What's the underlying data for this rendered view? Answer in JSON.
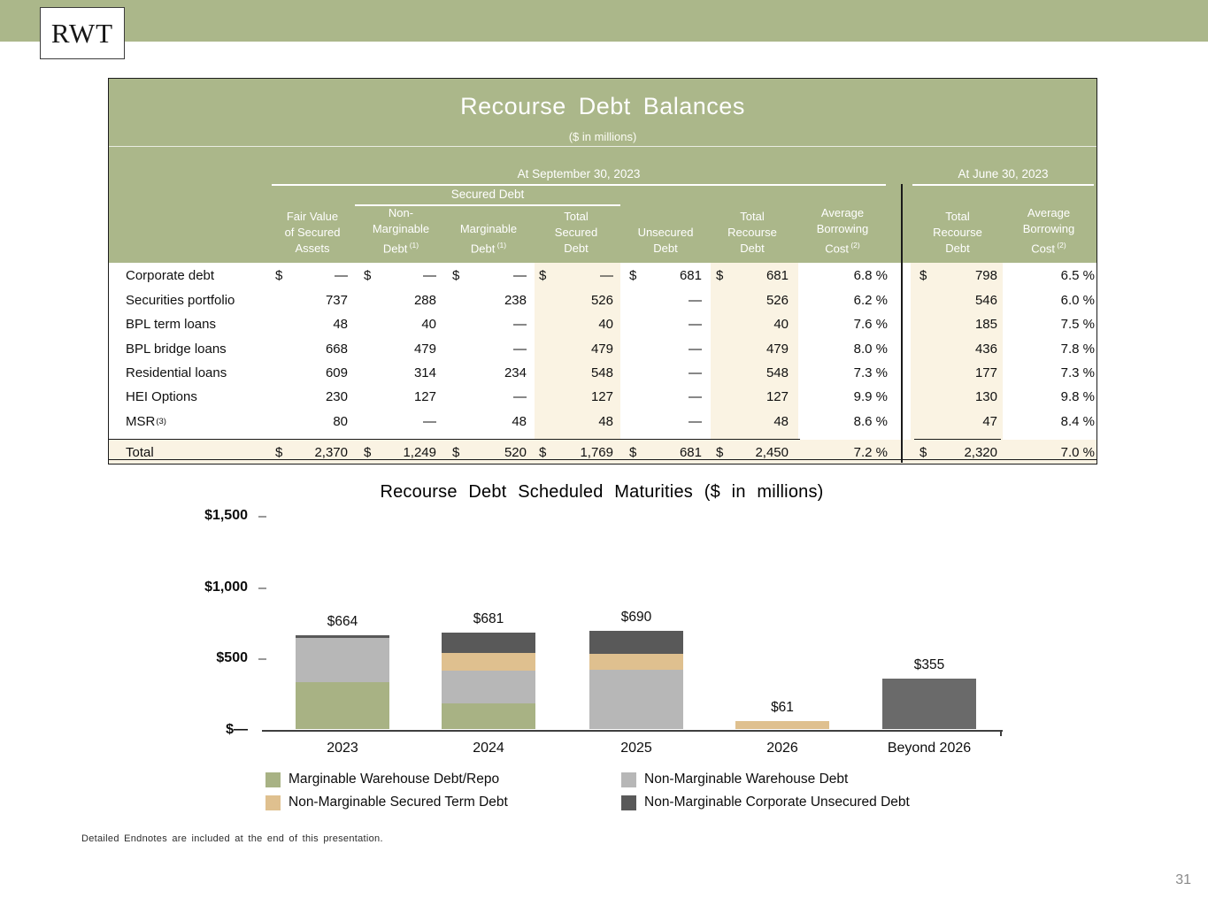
{
  "logo": "RWT",
  "table": {
    "title": "Recourse Debt Balances",
    "subtitle": "($ in millions)",
    "group_sept": "At September 30, 2023",
    "group_june": "At June 30, 2023",
    "group_secured": "Secured Debt",
    "columns": [
      {
        "lines": [
          "Fair Value",
          "of Secured",
          "Assets"
        ],
        "sup": ""
      },
      {
        "lines": [
          "Non-",
          "Marginable",
          "Debt"
        ],
        "sup": "(1)"
      },
      {
        "lines": [
          "Marginable",
          "Debt"
        ],
        "sup": "(1)"
      },
      {
        "lines": [
          "Total",
          "Secured",
          "Debt"
        ],
        "sup": ""
      },
      {
        "lines": [
          "Unsecured",
          "Debt"
        ],
        "sup": ""
      },
      {
        "lines": [
          "Total",
          "Recourse",
          "Debt"
        ],
        "sup": ""
      },
      {
        "lines": [
          "Average",
          "Borrowing",
          "Cost"
        ],
        "sup": "(2)"
      },
      {
        "lines": [
          "Total",
          "Recourse",
          "Debt"
        ],
        "sup": ""
      },
      {
        "lines": [
          "Average",
          "Borrowing",
          "Cost"
        ],
        "sup": "(2)"
      }
    ],
    "rows": [
      {
        "label": "Corporate debt",
        "sup": "",
        "cells": [
          {
            "d": "$",
            "v": "—"
          },
          {
            "d": "$",
            "v": "—"
          },
          {
            "d": "$",
            "v": "—"
          },
          {
            "d": "$",
            "v": "—"
          },
          {
            "d": "$",
            "v": "681"
          },
          {
            "d": "$",
            "v": "681"
          },
          {
            "d": "",
            "v": "6.8 %"
          },
          {
            "d": "$",
            "v": "798"
          },
          {
            "d": "",
            "v": "6.5 %"
          }
        ]
      },
      {
        "label": "Securities portfolio",
        "sup": "",
        "cells": [
          {
            "d": "",
            "v": "737"
          },
          {
            "d": "",
            "v": "288"
          },
          {
            "d": "",
            "v": "238"
          },
          {
            "d": "",
            "v": "526"
          },
          {
            "d": "",
            "v": "—"
          },
          {
            "d": "",
            "v": "526"
          },
          {
            "d": "",
            "v": "6.2 %"
          },
          {
            "d": "",
            "v": "546"
          },
          {
            "d": "",
            "v": "6.0 %"
          }
        ]
      },
      {
        "label": "BPL term loans",
        "sup": "",
        "cells": [
          {
            "d": "",
            "v": "48"
          },
          {
            "d": "",
            "v": "40"
          },
          {
            "d": "",
            "v": "—"
          },
          {
            "d": "",
            "v": "40"
          },
          {
            "d": "",
            "v": "—"
          },
          {
            "d": "",
            "v": "40"
          },
          {
            "d": "",
            "v": "7.6 %"
          },
          {
            "d": "",
            "v": "185"
          },
          {
            "d": "",
            "v": "7.5 %"
          }
        ]
      },
      {
        "label": "BPL bridge loans",
        "sup": "",
        "cells": [
          {
            "d": "",
            "v": "668"
          },
          {
            "d": "",
            "v": "479"
          },
          {
            "d": "",
            "v": "—"
          },
          {
            "d": "",
            "v": "479"
          },
          {
            "d": "",
            "v": "—"
          },
          {
            "d": "",
            "v": "479"
          },
          {
            "d": "",
            "v": "8.0 %"
          },
          {
            "d": "",
            "v": "436"
          },
          {
            "d": "",
            "v": "7.8 %"
          }
        ]
      },
      {
        "label": "Residential loans",
        "sup": "",
        "cells": [
          {
            "d": "",
            "v": "609"
          },
          {
            "d": "",
            "v": "314"
          },
          {
            "d": "",
            "v": "234"
          },
          {
            "d": "",
            "v": "548"
          },
          {
            "d": "",
            "v": "—"
          },
          {
            "d": "",
            "v": "548"
          },
          {
            "d": "",
            "v": "7.3 %"
          },
          {
            "d": "",
            "v": "177"
          },
          {
            "d": "",
            "v": "7.3 %"
          }
        ]
      },
      {
        "label": "HEI Options",
        "sup": "",
        "cells": [
          {
            "d": "",
            "v": "230"
          },
          {
            "d": "",
            "v": "127"
          },
          {
            "d": "",
            "v": "—"
          },
          {
            "d": "",
            "v": "127"
          },
          {
            "d": "",
            "v": "—"
          },
          {
            "d": "",
            "v": "127"
          },
          {
            "d": "",
            "v": "9.9 %"
          },
          {
            "d": "",
            "v": "130"
          },
          {
            "d": "",
            "v": "9.8 %"
          }
        ]
      },
      {
        "label": "MSR",
        "sup": "(3)",
        "cells": [
          {
            "d": "",
            "v": "80"
          },
          {
            "d": "",
            "v": "—"
          },
          {
            "d": "",
            "v": "48"
          },
          {
            "d": "",
            "v": "48"
          },
          {
            "d": "",
            "v": "—"
          },
          {
            "d": "",
            "v": "48"
          },
          {
            "d": "",
            "v": "8.6 %"
          },
          {
            "d": "",
            "v": "47"
          },
          {
            "d": "",
            "v": "8.4 %"
          }
        ]
      }
    ],
    "total_row": {
      "label": "Total",
      "sup": "",
      "cells": [
        {
          "d": "$",
          "v": "2,370"
        },
        {
          "d": "$",
          "v": "1,249"
        },
        {
          "d": "$",
          "v": "520"
        },
        {
          "d": "$",
          "v": "1,769"
        },
        {
          "d": "$",
          "v": "681"
        },
        {
          "d": "$",
          "v": "2,450"
        },
        {
          "d": "",
          "v": "7.2 %"
        },
        {
          "d": "$",
          "v": "2,320"
        },
        {
          "d": "",
          "v": "7.0 %"
        }
      ]
    },
    "colors": {
      "header_green": "#abb78a",
      "highlight_cream": "#faf3e3"
    }
  },
  "chart_data": {
    "type": "bar",
    "stacked": true,
    "title": "Recourse Debt Scheduled Maturities ($ in millions)",
    "categories": [
      "2023",
      "2024",
      "2025",
      "2026",
      "Beyond 2026"
    ],
    "totals_labels": [
      "$664",
      "$681",
      "$690",
      "$61",
      "$355"
    ],
    "totals_values": [
      664,
      681,
      690,
      61,
      355
    ],
    "series": [
      {
        "name": "Marginable Warehouse Debt/Repo",
        "color": "#a8b284",
        "values": [
          335,
          185,
          0,
          0,
          0
        ]
      },
      {
        "name": "Non-Marginable Warehouse Debt",
        "color": "#b7b7b7",
        "values": [
          309,
          225,
          417,
          0,
          0
        ]
      },
      {
        "name": "Non-Marginable Secured Term Debt",
        "color": "#dfc08f",
        "values": [
          0,
          130,
          112,
          61,
          0
        ]
      },
      {
        "name": "Non-Marginable Corporate Unsecured Debt",
        "color": "#595959",
        "values": [
          20,
          141,
          161,
          0,
          355
        ]
      }
    ],
    "beyond_bar_color": "#6a6a6a",
    "ylim": [
      0,
      1500
    ],
    "ytick_labels": [
      "$1,500",
      "$1,000",
      "$500",
      "$—"
    ],
    "ytick_values": [
      1500,
      1000,
      500,
      0
    ],
    "legend_position": "bottom",
    "grid": false
  },
  "footnote": "Detailed Endnotes are included at the end of this presentation.",
  "page_number": "31"
}
